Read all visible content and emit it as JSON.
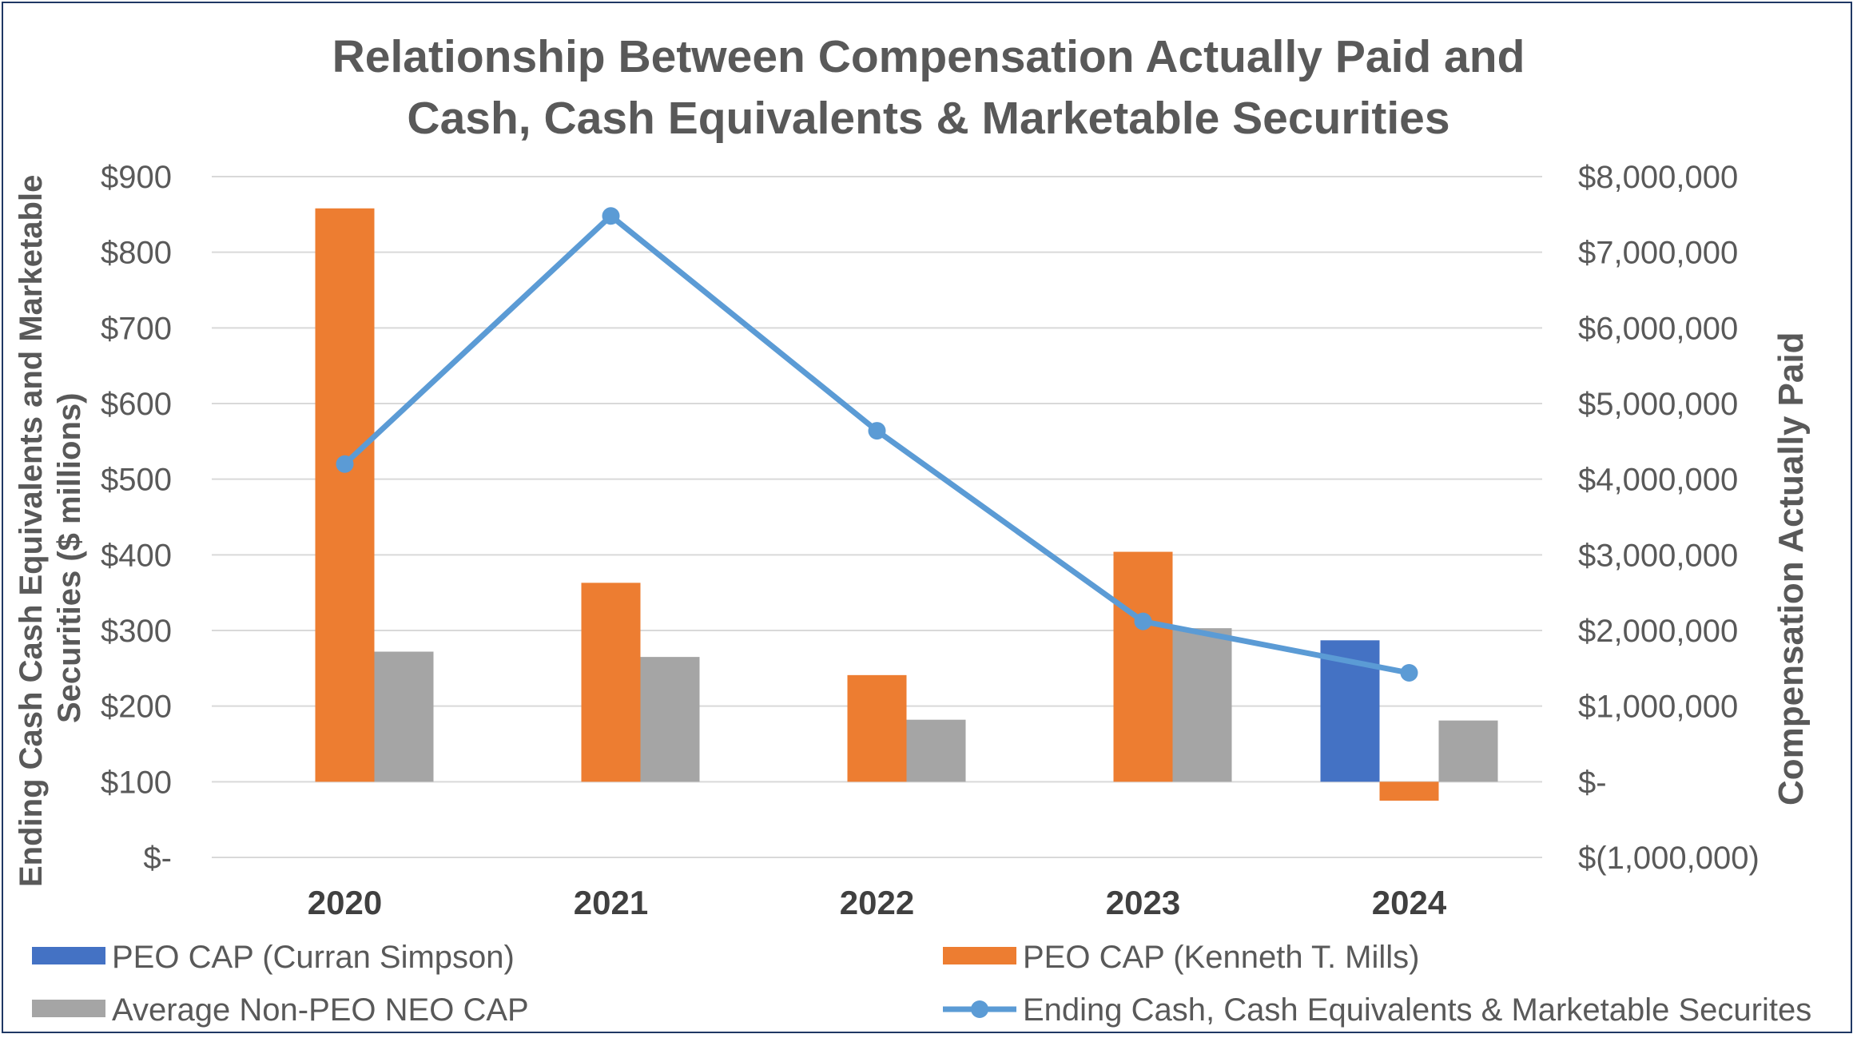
{
  "chart_data": {
    "type": "bar",
    "title_line1": "Relationship Between Compensation Actually Paid and",
    "title_line2": "Cash, Cash Equivalents & Marketable Securities",
    "categories": [
      "2020",
      "2021",
      "2022",
      "2023",
      "2024"
    ],
    "left_axis": {
      "label_line1": "Ending Cash Cash Equivalents and Marketable",
      "label_line2": "Securities ($ millions)",
      "ylim": [
        0,
        900
      ],
      "ticks": [
        0,
        100,
        200,
        300,
        400,
        500,
        600,
        700,
        800,
        900
      ],
      "tick_labels": [
        "$-",
        "$100",
        "$200",
        "$300",
        "$400",
        "$500",
        "$600",
        "$700",
        "$800",
        "$900"
      ]
    },
    "right_axis": {
      "label": "Compensation Actually Paid",
      "ylim": [
        -1000000,
        8000000
      ],
      "ticks": [
        -1000000,
        0,
        1000000,
        2000000,
        3000000,
        4000000,
        5000000,
        6000000,
        7000000,
        8000000
      ],
      "tick_labels": [
        "$(1,000,000)",
        "$-",
        "$1,000,000",
        "$2,000,000",
        "$3,000,000",
        "$4,000,000",
        "$5,000,000",
        "$6,000,000",
        "$7,000,000",
        "$8,000,000"
      ]
    },
    "series": [
      {
        "name": "PEO CAP (Curran Simpson)",
        "type": "bar",
        "axis": "right",
        "color": "#4472c4",
        "values": [
          null,
          null,
          null,
          null,
          1870000
        ]
      },
      {
        "name": "PEO CAP (Kenneth T. Mills)",
        "type": "bar",
        "axis": "right",
        "color": "#ed7d31",
        "values": [
          7580000,
          2630000,
          1410000,
          3040000,
          -250000
        ]
      },
      {
        "name": "Average Non-PEO NEO CAP",
        "type": "bar",
        "axis": "right",
        "color": "#a5a5a5",
        "values": [
          1720000,
          1650000,
          820000,
          2030000,
          810000
        ]
      },
      {
        "name": "Ending Cash, Cash Equivalents & Marketable Securites",
        "type": "line",
        "axis": "left",
        "color": "#5b9bd5",
        "values": [
          520,
          848,
          564,
          312,
          244
        ]
      }
    ],
    "legend_position": "bottom"
  }
}
